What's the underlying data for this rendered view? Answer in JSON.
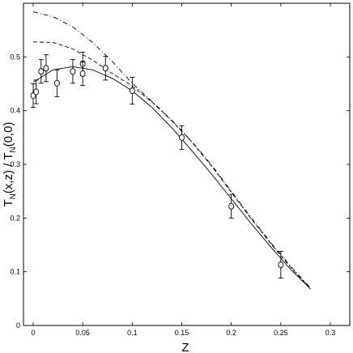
{
  "chart_data": {
    "type": "scatter",
    "xlabel": "Z",
    "ylabel_main": "T",
    "ylabel_sub1": "N",
    "ylabel_mid": "(x,z)  /  T",
    "ylabel_sub2": "N",
    "ylabel_end": "(0,0)",
    "xlim": [
      -0.02,
      0.32
    ],
    "ylim": [
      0,
      0.6
    ],
    "x_ticks": [
      "0",
      "0.05",
      "0.1",
      "0.15",
      "0.2",
      "0.25",
      "0.3"
    ],
    "x_tick_values": [
      0,
      0.05,
      0.1,
      0.15,
      0.2,
      0.25,
      0.3
    ],
    "y_ticks": [
      "0",
      "0.1",
      "0.2",
      "0.3",
      "0.4",
      "0.5"
    ],
    "y_tick_values": [
      0,
      0.1,
      0.2,
      0.3,
      0.4,
      0.5
    ],
    "grid": false,
    "points": [
      {
        "x": 0.0,
        "y": 0.428,
        "err": 0.022
      },
      {
        "x": 0.003,
        "y": 0.435,
        "err": 0.022
      },
      {
        "x": 0.008,
        "y": 0.473,
        "err": 0.022
      },
      {
        "x": 0.013,
        "y": 0.479,
        "err": 0.025
      },
      {
        "x": 0.024,
        "y": 0.451,
        "err": 0.025
      },
      {
        "x": 0.04,
        "y": 0.473,
        "err": 0.022
      },
      {
        "x": 0.05,
        "y": 0.487,
        "err": 0.022
      },
      {
        "x": 0.05,
        "y": 0.469,
        "err": 0.022
      },
      {
        "x": 0.073,
        "y": 0.479,
        "err": 0.022
      },
      {
        "x": 0.1,
        "y": 0.437,
        "err": 0.025
      },
      {
        "x": 0.15,
        "y": 0.35,
        "err": 0.022
      },
      {
        "x": 0.2,
        "y": 0.222,
        "err": 0.022
      },
      {
        "x": 0.25,
        "y": 0.113,
        "err": 0.025
      }
    ],
    "curves": [
      {
        "style": "solid",
        "x": [
          0.0,
          0.02,
          0.04,
          0.06,
          0.08,
          0.1,
          0.12,
          0.14,
          0.16,
          0.18,
          0.2,
          0.22,
          0.24,
          0.26,
          0.28
        ],
        "y": [
          0.453,
          0.476,
          0.482,
          0.476,
          0.46,
          0.437,
          0.406,
          0.368,
          0.326,
          0.282,
          0.236,
          0.19,
          0.146,
          0.104,
          0.068
        ]
      },
      {
        "style": "dashed",
        "x": [
          0.0,
          0.02,
          0.04,
          0.06,
          0.08,
          0.1,
          0.12,
          0.14,
          0.16,
          0.18,
          0.2,
          0.22,
          0.24,
          0.26,
          0.28
        ],
        "y": [
          0.528,
          0.527,
          0.515,
          0.494,
          0.469,
          0.446,
          0.416,
          0.381,
          0.342,
          0.297,
          0.248,
          0.199,
          0.152,
          0.108,
          0.069
        ]
      },
      {
        "style": "dashdot",
        "x": [
          0.0,
          0.02,
          0.04,
          0.06,
          0.08,
          0.1,
          0.12,
          0.14,
          0.16,
          0.18,
          0.2,
          0.22,
          0.24,
          0.26,
          0.28
        ],
        "y": [
          0.584,
          0.575,
          0.556,
          0.527,
          0.491,
          0.451,
          0.417,
          0.382,
          0.343,
          0.299,
          0.25,
          0.201,
          0.154,
          0.11,
          0.07
        ]
      }
    ]
  }
}
